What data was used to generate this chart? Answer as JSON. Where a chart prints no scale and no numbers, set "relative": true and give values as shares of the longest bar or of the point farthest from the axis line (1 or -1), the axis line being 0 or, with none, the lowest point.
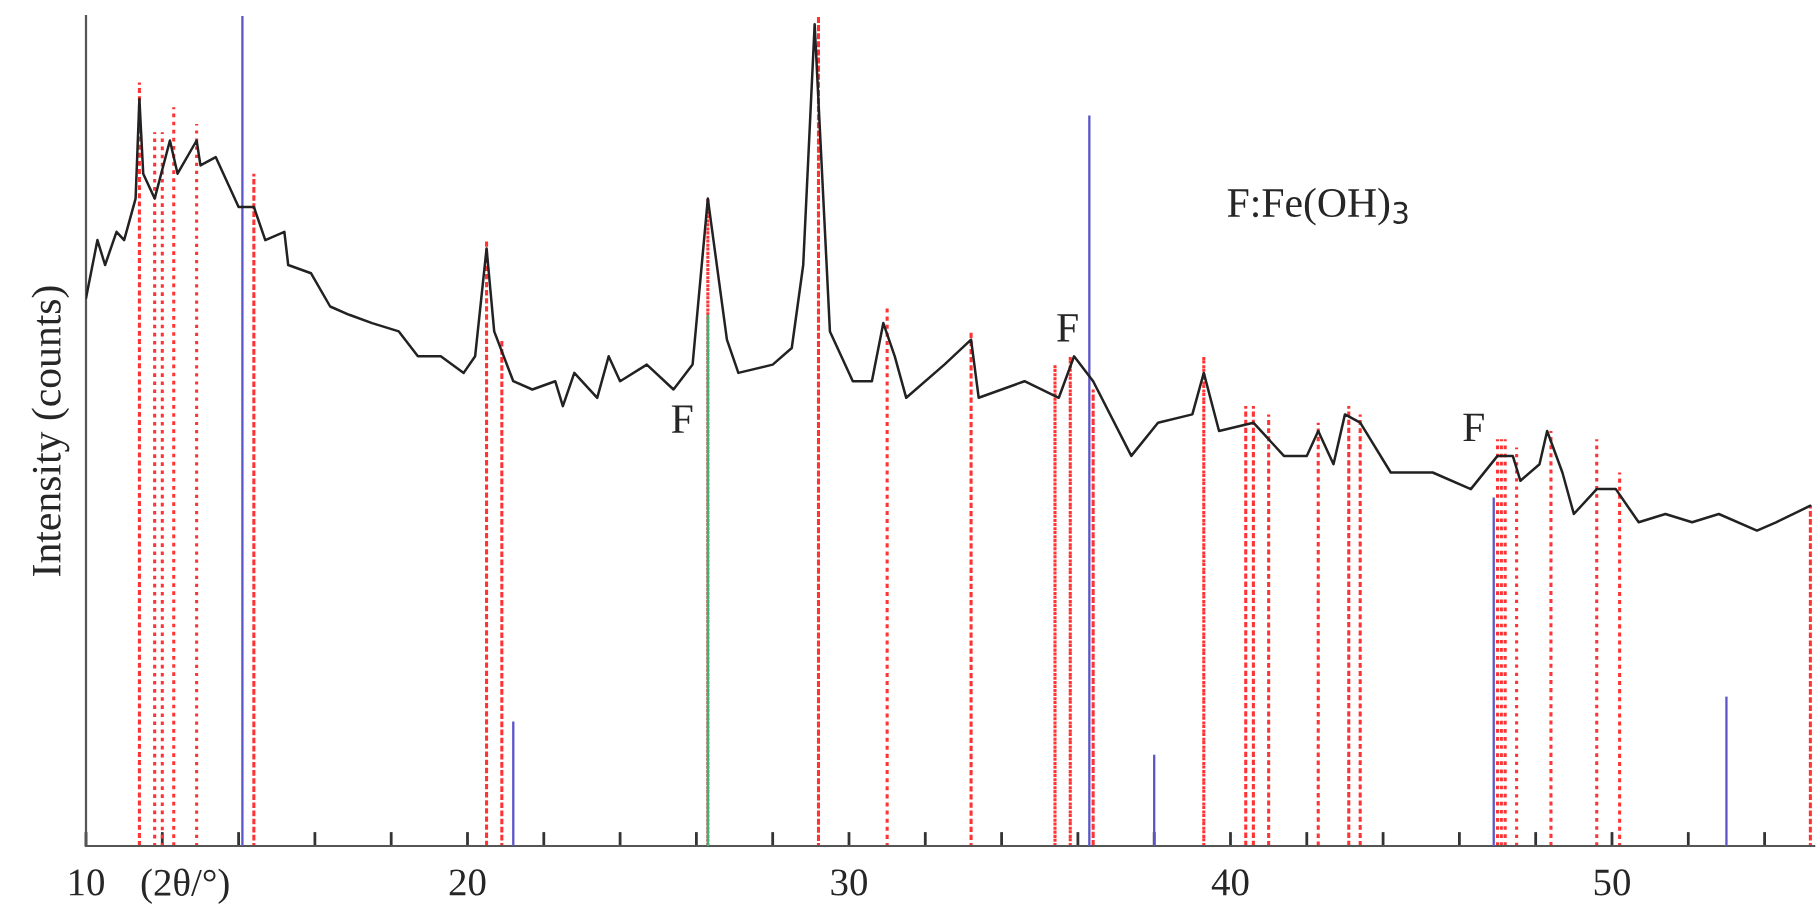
{
  "chart_data": {
    "type": "line",
    "relative": true,
    "xlabel": "(2θ/°)",
    "ylabel": "Intensity (counts)",
    "xlim": [
      10,
      55.3
    ],
    "xticks": [
      10,
      {
        "value": 12,
        "label": null
      },
      {
        "value": 14,
        "label": null
      },
      {
        "value": 16,
        "label": null
      },
      {
        "value": 18,
        "label": null
      },
      20,
      {
        "value": 22,
        "label": null
      },
      {
        "value": 24,
        "label": null
      },
      {
        "value": 26,
        "label": null
      },
      {
        "value": 28,
        "label": null
      },
      30,
      {
        "value": 32,
        "label": null
      },
      {
        "value": 34,
        "label": null
      },
      {
        "value": 36,
        "label": null
      },
      {
        "value": 38,
        "label": null
      },
      40,
      {
        "value": 42,
        "label": null
      },
      {
        "value": 44,
        "label": null
      },
      {
        "value": 46,
        "label": null
      },
      {
        "value": 48,
        "label": null
      },
      50,
      {
        "value": 52,
        "label": null
      },
      {
        "value": 54,
        "label": null
      }
    ],
    "annotations": [
      "F:Fe(OH)$_{3}$",
      "F",
      "F",
      "F"
    ],
    "series": [
      {
        "type": "bar",
        "color": "#ff3333",
        "line_style": "dotted",
        "x": [
          11.4,
          11.8,
          12.0,
          12.3,
          12.9,
          14.4,
          20.5,
          20.9,
          26.3,
          29.2,
          31.0,
          33.2,
          35.4,
          35.8,
          36.4,
          39.3,
          40.4,
          40.6,
          41.0,
          42.3,
          43.1,
          43.4,
          47.0,
          47.1,
          47.2,
          47.5,
          48.4,
          49.6,
          50.2,
          55.2
        ],
        "values": [
          0.92,
          0.86,
          0.86,
          0.89,
          0.87,
          0.81,
          0.73,
          0.61,
          0.78,
          1.0,
          0.65,
          0.62,
          0.58,
          0.59,
          0.55,
          0.59,
          0.53,
          0.53,
          0.52,
          0.51,
          0.53,
          0.52,
          0.49,
          0.49,
          0.49,
          0.48,
          0.5,
          0.49,
          0.45,
          0.41
        ]
      },
      {
        "type": "bar",
        "color": "#5b55c8",
        "line_style": "solid",
        "x": [
          14.1,
          21.2,
          36.3,
          38.0,
          46.9,
          53.0
        ],
        "values": [
          1.0,
          0.15,
          0.88,
          0.11,
          0.42,
          0.18
        ]
      },
      {
        "type": "bar",
        "color": "#3cb37a",
        "line_style": "solid",
        "x": [
          26.3
        ],
        "values": [
          0.64
        ]
      },
      {
        "color": "#222222",
        "line_style": "solid",
        "x": [
          10.0,
          10.3,
          10.5,
          10.8,
          11.0,
          11.3,
          11.4,
          11.5,
          11.8,
          12.2,
          12.4,
          12.9,
          13.0,
          13.4,
          13.7,
          14.0,
          14.4,
          14.7,
          15.2,
          15.3,
          15.9,
          16.4,
          16.9,
          17.5,
          18.2,
          18.7,
          19.3,
          19.9,
          20.2,
          20.5,
          20.7,
          21.2,
          21.7,
          22.3,
          22.5,
          22.8,
          23.4,
          23.7,
          24.0,
          24.7,
          25.4,
          25.9,
          26.3,
          26.8,
          27.1,
          28.0,
          28.5,
          28.8,
          29.1,
          29.5,
          30.1,
          30.6,
          30.9,
          31.2,
          31.5,
          32.5,
          33.2,
          33.4,
          34.6,
          35.5,
          35.9,
          36.4,
          37.4,
          38.1,
          39.0,
          39.3,
          39.7,
          40.6,
          41.4,
          42.0,
          42.3,
          42.7,
          43.0,
          43.4,
          44.2,
          45.3,
          46.3,
          47.0,
          47.4,
          47.6,
          48.1,
          48.3,
          48.7,
          49.0,
          49.6,
          50.1,
          50.7,
          51.4,
          52.1,
          52.8,
          53.8,
          54.3,
          55.2
        ],
        "values": [
          0.66,
          0.73,
          0.7,
          0.74,
          0.73,
          0.78,
          0.9,
          0.81,
          0.78,
          0.85,
          0.81,
          0.85,
          0.82,
          0.83,
          0.8,
          0.77,
          0.77,
          0.73,
          0.74,
          0.7,
          0.69,
          0.65,
          0.64,
          0.63,
          0.62,
          0.59,
          0.59,
          0.57,
          0.59,
          0.72,
          0.62,
          0.56,
          0.55,
          0.56,
          0.53,
          0.57,
          0.54,
          0.59,
          0.56,
          0.58,
          0.55,
          0.58,
          0.78,
          0.61,
          0.57,
          0.58,
          0.6,
          0.7,
          0.99,
          0.62,
          0.56,
          0.56,
          0.63,
          0.59,
          0.54,
          0.58,
          0.61,
          0.54,
          0.56,
          0.54,
          0.59,
          0.56,
          0.47,
          0.51,
          0.52,
          0.57,
          0.5,
          0.51,
          0.47,
          0.47,
          0.5,
          0.46,
          0.52,
          0.51,
          0.45,
          0.45,
          0.43,
          0.47,
          0.47,
          0.44,
          0.46,
          0.5,
          0.45,
          0.4,
          0.43,
          0.43,
          0.39,
          0.4,
          0.39,
          0.4,
          0.38,
          0.39,
          0.41
        ]
      }
    ]
  }
}
